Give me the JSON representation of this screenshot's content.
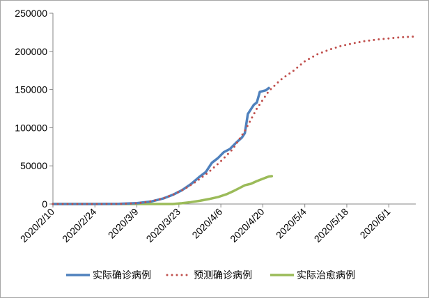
{
  "chart_data": {
    "type": "line",
    "title": "",
    "xlabel": "",
    "ylabel": "",
    "ylim": [
      0,
      250000
    ],
    "yticks": [
      "0",
      "50000",
      "100000",
      "150000",
      "200000",
      "250000"
    ],
    "x_tick_labels": [
      "2020/2/10",
      "2020/2/24",
      "2020/3/9",
      "2020/3/23",
      "2020/4/6",
      "2020/4/20",
      "2020/5/4",
      "2020/5/18",
      "2020/6/1"
    ],
    "x_axis_start": "2020/2/10",
    "x_axis_end": "2020/6/10",
    "grid": false,
    "legend_position": "bottom",
    "series": [
      {
        "name": "实际确诊病例",
        "color": "#4f81bd",
        "style": "solid",
        "points": [
          [
            "2020/2/10",
            0
          ],
          [
            "2020/2/24",
            0
          ],
          [
            "2020/3/3",
            300
          ],
          [
            "2020/3/9",
            1200
          ],
          [
            "2020/3/14",
            3500
          ],
          [
            "2020/3/18",
            7500
          ],
          [
            "2020/3/21",
            12000
          ],
          [
            "2020/3/24",
            18000
          ],
          [
            "2020/3/27",
            26000
          ],
          [
            "2020/3/30",
            36000
          ],
          [
            "2020/4/1",
            42000
          ],
          [
            "2020/4/3",
            54000
          ],
          [
            "2020/4/5",
            60000
          ],
          [
            "2020/4/7",
            68000
          ],
          [
            "2020/4/9",
            72000
          ],
          [
            "2020/4/11",
            80000
          ],
          [
            "2020/4/13",
            87000
          ],
          [
            "2020/4/14",
            93000
          ],
          [
            "2020/4/15",
            118000
          ],
          [
            "2020/4/16",
            124000
          ],
          [
            "2020/4/17",
            130000
          ],
          [
            "2020/4/18",
            133000
          ],
          [
            "2020/4/19",
            147000
          ],
          [
            "2020/4/20",
            148000
          ],
          [
            "2020/4/21",
            149000
          ],
          [
            "2020/4/22",
            152000
          ]
        ]
      },
      {
        "name": "预测确诊病例",
        "color": "#c0504d",
        "style": "dotted",
        "points": [
          [
            "2020/2/10",
            0
          ],
          [
            "2020/2/24",
            0
          ],
          [
            "2020/3/3",
            200
          ],
          [
            "2020/3/9",
            900
          ],
          [
            "2020/3/13",
            3000
          ],
          [
            "2020/3/17",
            6500
          ],
          [
            "2020/3/21",
            12000
          ],
          [
            "2020/3/25",
            20000
          ],
          [
            "2020/3/29",
            30000
          ],
          [
            "2020/4/2",
            42000
          ],
          [
            "2020/4/6",
            56000
          ],
          [
            "2020/4/10",
            72000
          ],
          [
            "2020/4/14",
            96000
          ],
          [
            "2020/4/18",
            125000
          ],
          [
            "2020/4/22",
            148000
          ],
          [
            "2020/4/26",
            163000
          ],
          [
            "2020/4/30",
            174000
          ],
          [
            "2020/5/4",
            187000
          ],
          [
            "2020/5/8",
            196000
          ],
          [
            "2020/5/12",
            202000
          ],
          [
            "2020/5/16",
            207000
          ],
          [
            "2020/5/20",
            210500
          ],
          [
            "2020/5/24",
            213500
          ],
          [
            "2020/5/28",
            215500
          ],
          [
            "2020/6/1",
            217000
          ],
          [
            "2020/6/5",
            218500
          ],
          [
            "2020/6/10",
            219500
          ]
        ]
      },
      {
        "name": "实际治愈病例",
        "color": "#9bbb59",
        "style": "solid",
        "points": [
          [
            "2020/2/10",
            0
          ],
          [
            "2020/3/21",
            0
          ],
          [
            "2020/3/24",
            1000
          ],
          [
            "2020/3/27",
            2500
          ],
          [
            "2020/3/30",
            4200
          ],
          [
            "2020/4/2",
            6500
          ],
          [
            "2020/4/5",
            9000
          ],
          [
            "2020/4/8",
            13000
          ],
          [
            "2020/4/10",
            16500
          ],
          [
            "2020/4/12",
            20500
          ],
          [
            "2020/4/14",
            24500
          ],
          [
            "2020/4/16",
            26500
          ],
          [
            "2020/4/18",
            30000
          ],
          [
            "2020/4/20",
            33000
          ],
          [
            "2020/4/22",
            36000
          ],
          [
            "2020/4/23",
            36500
          ]
        ]
      }
    ]
  }
}
